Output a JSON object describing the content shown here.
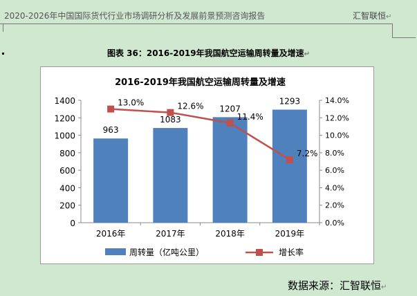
{
  "header": {
    "title": "2020-2026年中国国际货代行业市场调研分析及发展前景预测咨询报告",
    "brand": "汇智联恒"
  },
  "caption": "图表 36：2016-2019年我国航空运输周转量及增速",
  "source": "数据来源：汇智联恒",
  "return_mark": "↵",
  "colors": {
    "bar": "#4f81bd",
    "line": "#c0504d"
  },
  "chart_data": {
    "type": "bar+line",
    "title": "2016-2019年我国航空运输周转量及增速",
    "categories": [
      "2016年",
      "2017年",
      "2018年",
      "2019年"
    ],
    "series": [
      {
        "name": "周转量（亿吨公里）",
        "axis": "left",
        "type": "bar",
        "values": [
          963,
          1083,
          1207,
          1293
        ],
        "labels": [
          "963",
          "1083",
          "1207",
          "1293"
        ]
      },
      {
        "name": "增长率",
        "axis": "right",
        "type": "line",
        "values": [
          13.0,
          12.6,
          11.4,
          7.2
        ],
        "labels": [
          "13.0%",
          "12.6%",
          "11.4%",
          "7.2%"
        ]
      }
    ],
    "y_left": {
      "min": 0,
      "max": 1400,
      "step": 200,
      "ticks": [
        "0",
        "200",
        "400",
        "600",
        "800",
        "1000",
        "1200",
        "1400"
      ]
    },
    "y_right": {
      "min": 0,
      "max": 14,
      "step": 2,
      "ticks": [
        "0.0%",
        "2.0%",
        "4.0%",
        "6.0%",
        "8.0%",
        "10.0%",
        "12.0%",
        "14.0%"
      ]
    },
    "legend_position": "bottom",
    "grid": false
  }
}
